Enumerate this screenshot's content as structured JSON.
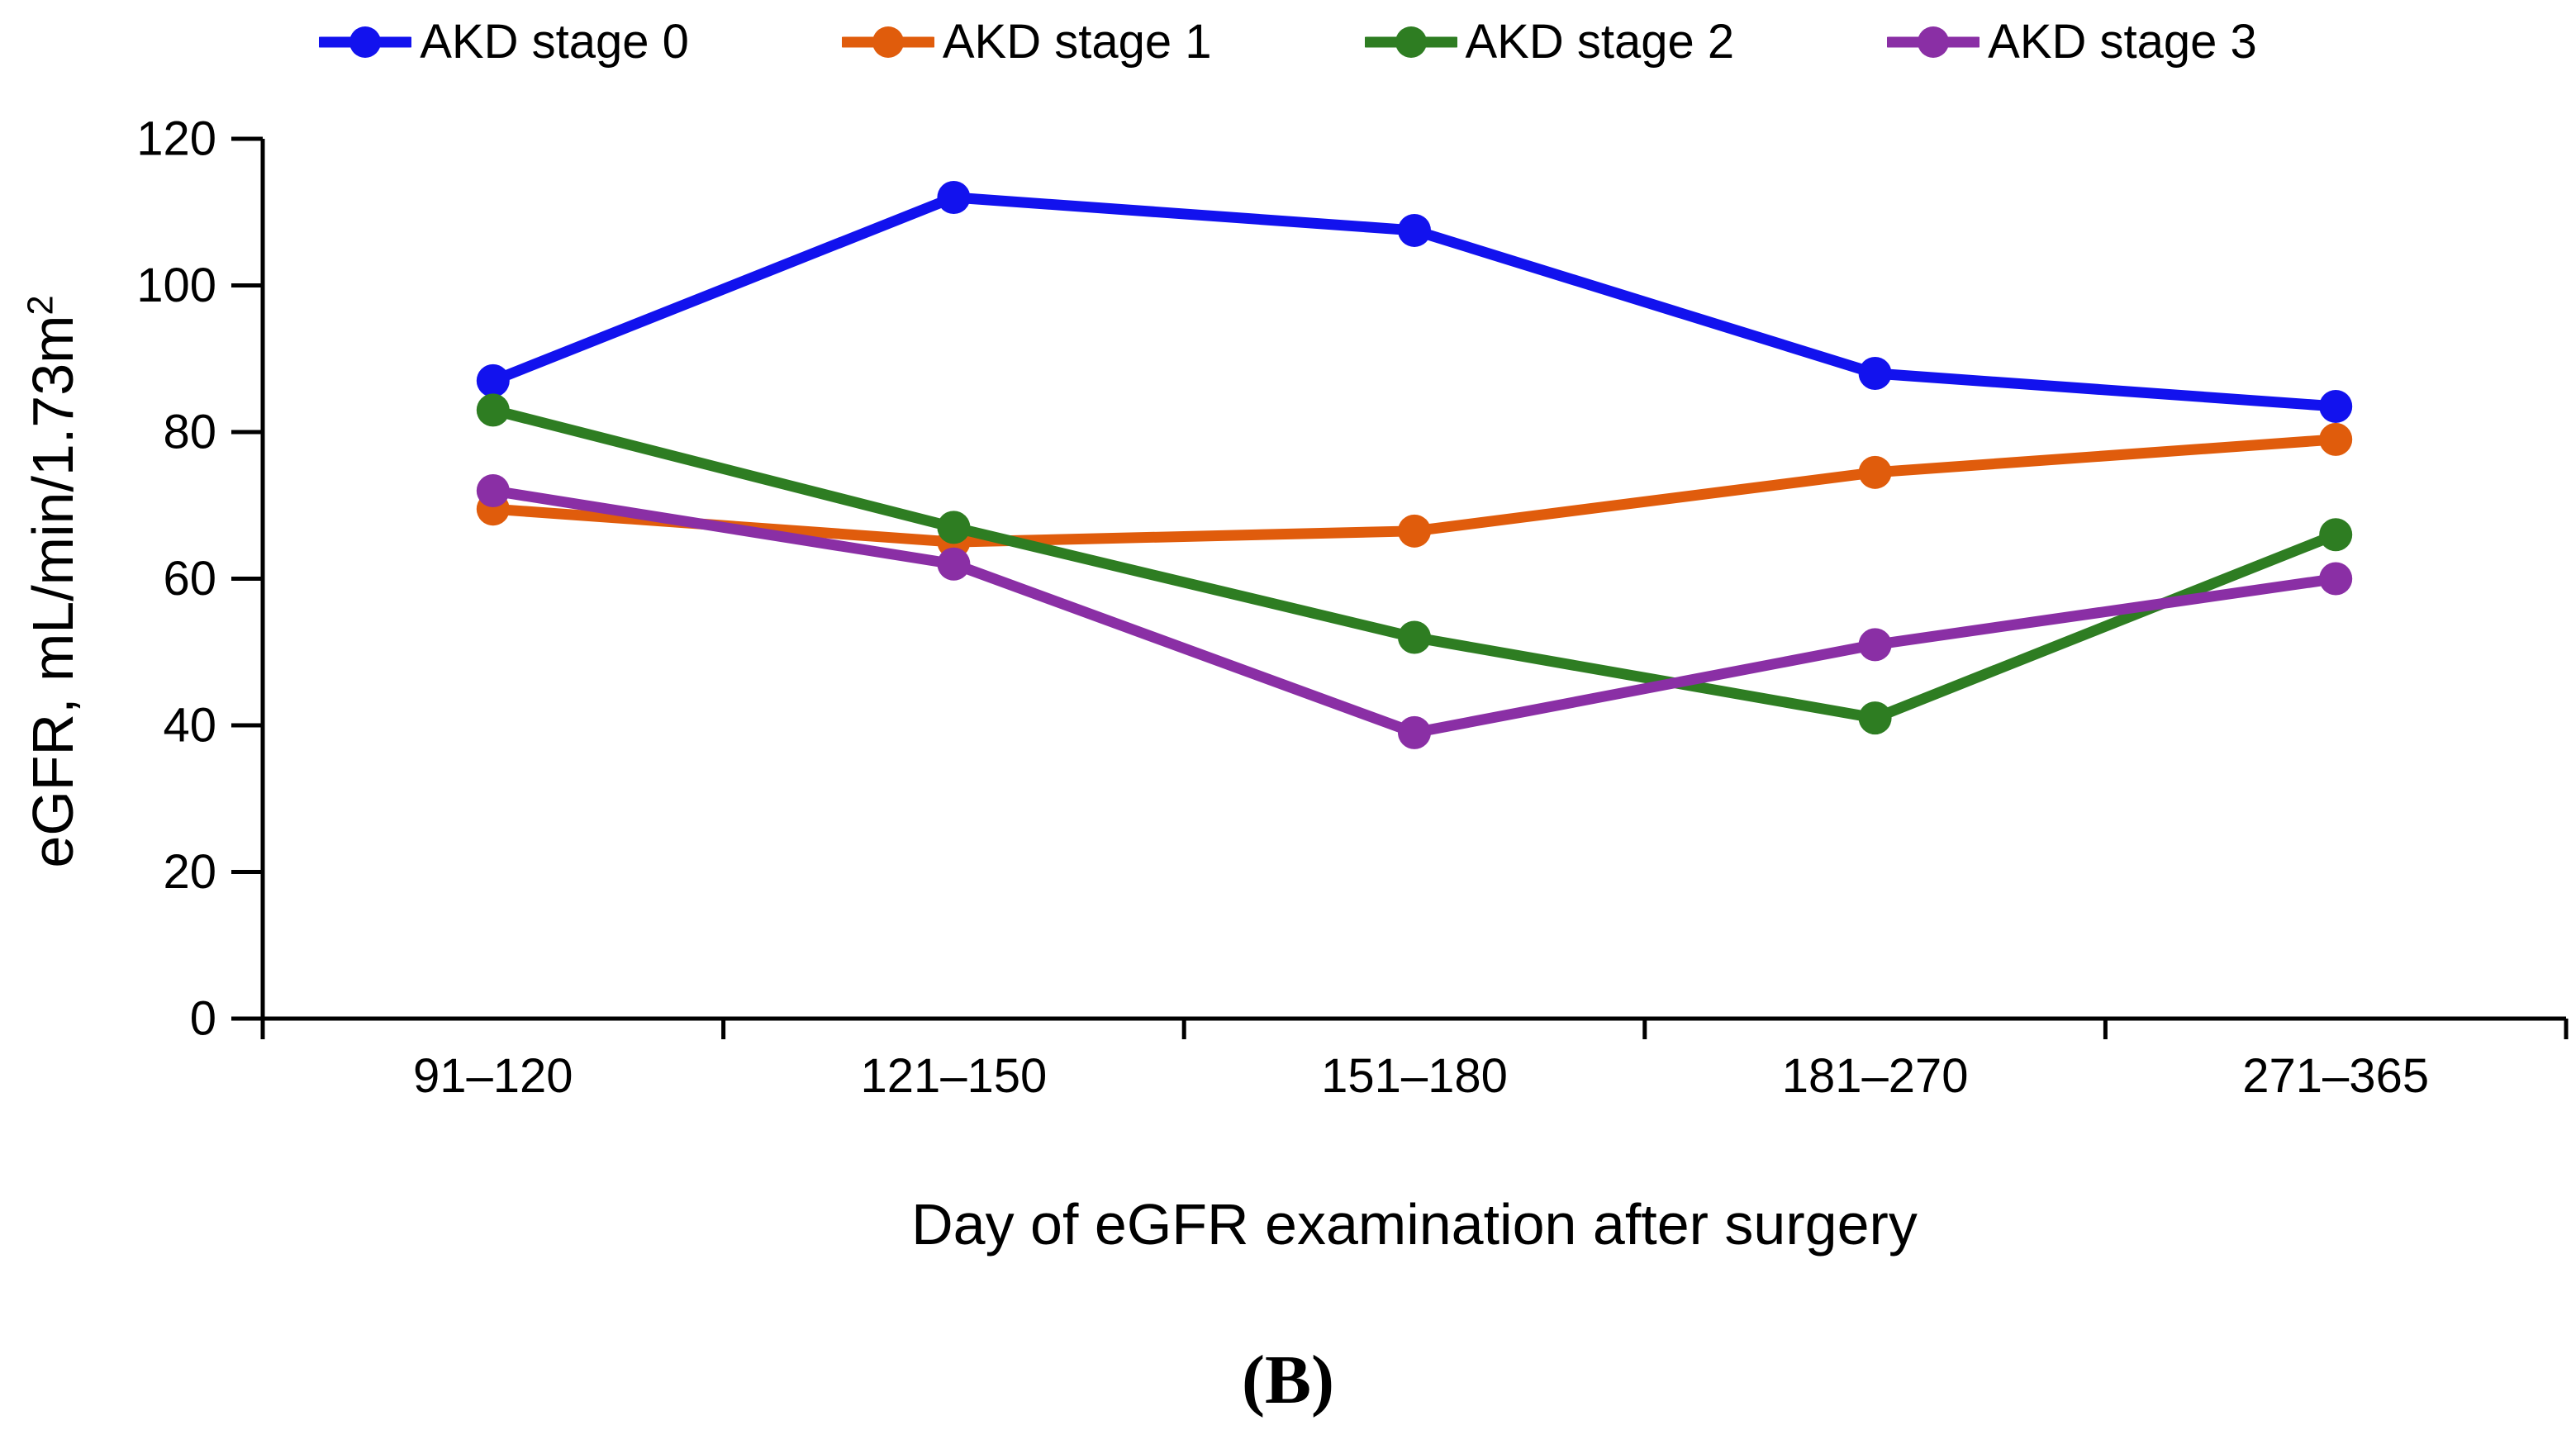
{
  "figure": {
    "caption": "(B)",
    "xlabel": "Day of eGFR examination after surgery",
    "ylabel": "eGFR, mL/min/1.73m",
    "ylabel_superscript": "2"
  },
  "chart_data": {
    "type": "line",
    "title": "",
    "categories": [
      "91–120",
      "121–150",
      "151–180",
      "181–270",
      "271–365"
    ],
    "series": [
      {
        "name": "AKD stage 0",
        "color": "#1212ee",
        "values": [
          87,
          112,
          107.5,
          88,
          83.5
        ]
      },
      {
        "name": "AKD stage 1",
        "color": "#e05c0c",
        "values": [
          69.5,
          65,
          66.5,
          74.5,
          79
        ]
      },
      {
        "name": "AKD stage 2",
        "color": "#2e7d22",
        "values": [
          83,
          67,
          52,
          41,
          66
        ]
      },
      {
        "name": "AKD stage 3",
        "color": "#8a2fa5",
        "values": [
          72,
          62,
          39,
          51,
          60
        ]
      }
    ],
    "xlabel": "Day of eGFR examination after surgery",
    "ylabel": "eGFR, mL/min/1.73m²",
    "ylim": [
      0,
      120
    ],
    "yticks": [
      0,
      20,
      40,
      60,
      80,
      100,
      120
    ],
    "legend_position": "top",
    "grid": false,
    "axis_color": "#000000",
    "marker": "circle"
  }
}
